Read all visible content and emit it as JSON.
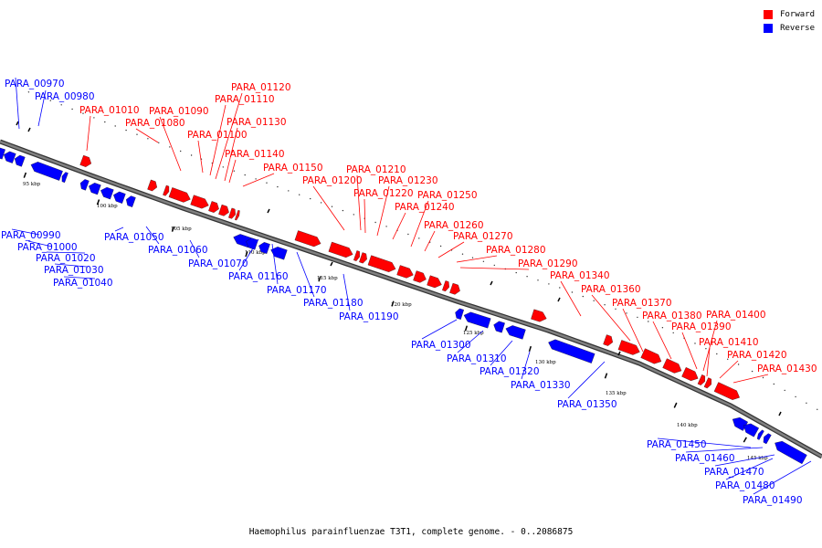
{
  "colors": {
    "forward": "#ff0000",
    "reverse": "#0000ff",
    "backbone": "#808080"
  },
  "legend": [
    {
      "name": "Forward",
      "color": "#ff0000"
    },
    {
      "name": "Reverse",
      "color": "#0000ff"
    }
  ],
  "caption": "Haemophilus parainfluenzae T3T1, complete genome. - 0..2086875",
  "scale_ticks": [
    "95 kbp",
    "100 kbp",
    "105 kbp",
    "110 kbp",
    "115 kbp",
    "120 kbp",
    "125 kbp",
    "130 kbp",
    "135 kbp",
    "140 kbp",
    "145 kbp"
  ],
  "genes": [
    {
      "name": "PARA_00970",
      "strand": "reverse"
    },
    {
      "name": "PARA_00980",
      "strand": "reverse"
    },
    {
      "name": "PARA_00990",
      "strand": "reverse"
    },
    {
      "name": "PARA_01000",
      "strand": "reverse"
    },
    {
      "name": "PARA_01010",
      "strand": "forward"
    },
    {
      "name": "PARA_01020",
      "strand": "reverse"
    },
    {
      "name": "PARA_01030",
      "strand": "reverse"
    },
    {
      "name": "PARA_01040",
      "strand": "reverse"
    },
    {
      "name": "PARA_01050",
      "strand": "reverse"
    },
    {
      "name": "PARA_01060",
      "strand": "reverse"
    },
    {
      "name": "PARA_01070",
      "strand": "reverse"
    },
    {
      "name": "PARA_01080",
      "strand": "forward"
    },
    {
      "name": "PARA_01090",
      "strand": "forward"
    },
    {
      "name": "PARA_01100",
      "strand": "forward"
    },
    {
      "name": "PARA_01110",
      "strand": "forward"
    },
    {
      "name": "PARA_01120",
      "strand": "forward"
    },
    {
      "name": "PARA_01130",
      "strand": "forward"
    },
    {
      "name": "PARA_01140",
      "strand": "forward"
    },
    {
      "name": "PARA_01150",
      "strand": "forward"
    },
    {
      "name": "PARA_01160",
      "strand": "reverse"
    },
    {
      "name": "PARA_01170",
      "strand": "reverse"
    },
    {
      "name": "PARA_01180",
      "strand": "reverse"
    },
    {
      "name": "PARA_01190",
      "strand": "reverse"
    },
    {
      "name": "PARA_01200",
      "strand": "forward"
    },
    {
      "name": "PARA_01210",
      "strand": "forward"
    },
    {
      "name": "PARA_01220",
      "strand": "forward"
    },
    {
      "name": "PARA_01230",
      "strand": "forward"
    },
    {
      "name": "PARA_01240",
      "strand": "forward"
    },
    {
      "name": "PARA_01250",
      "strand": "forward"
    },
    {
      "name": "PARA_01260",
      "strand": "forward"
    },
    {
      "name": "PARA_01270",
      "strand": "forward"
    },
    {
      "name": "PARA_01280",
      "strand": "forward"
    },
    {
      "name": "PARA_01290",
      "strand": "forward"
    },
    {
      "name": "PARA_01300",
      "strand": "reverse"
    },
    {
      "name": "PARA_01310",
      "strand": "reverse"
    },
    {
      "name": "PARA_01320",
      "strand": "reverse"
    },
    {
      "name": "PARA_01330",
      "strand": "reverse"
    },
    {
      "name": "PARA_01340",
      "strand": "forward"
    },
    {
      "name": "PARA_01350",
      "strand": "reverse"
    },
    {
      "name": "PARA_01360",
      "strand": "forward"
    },
    {
      "name": "PARA_01370",
      "strand": "forward"
    },
    {
      "name": "PARA_01380",
      "strand": "forward"
    },
    {
      "name": "PARA_01390",
      "strand": "forward"
    },
    {
      "name": "PARA_01400",
      "strand": "forward"
    },
    {
      "name": "PARA_01410",
      "strand": "forward"
    },
    {
      "name": "PARA_01420",
      "strand": "forward"
    },
    {
      "name": "PARA_01430",
      "strand": "forward"
    },
    {
      "name": "PARA_01450",
      "strand": "reverse"
    },
    {
      "name": "PARA_01460",
      "strand": "reverse"
    },
    {
      "name": "PARA_01470",
      "strand": "reverse"
    },
    {
      "name": "PARA_01480",
      "strand": "reverse"
    },
    {
      "name": "PARA_01490",
      "strand": "reverse"
    }
  ]
}
